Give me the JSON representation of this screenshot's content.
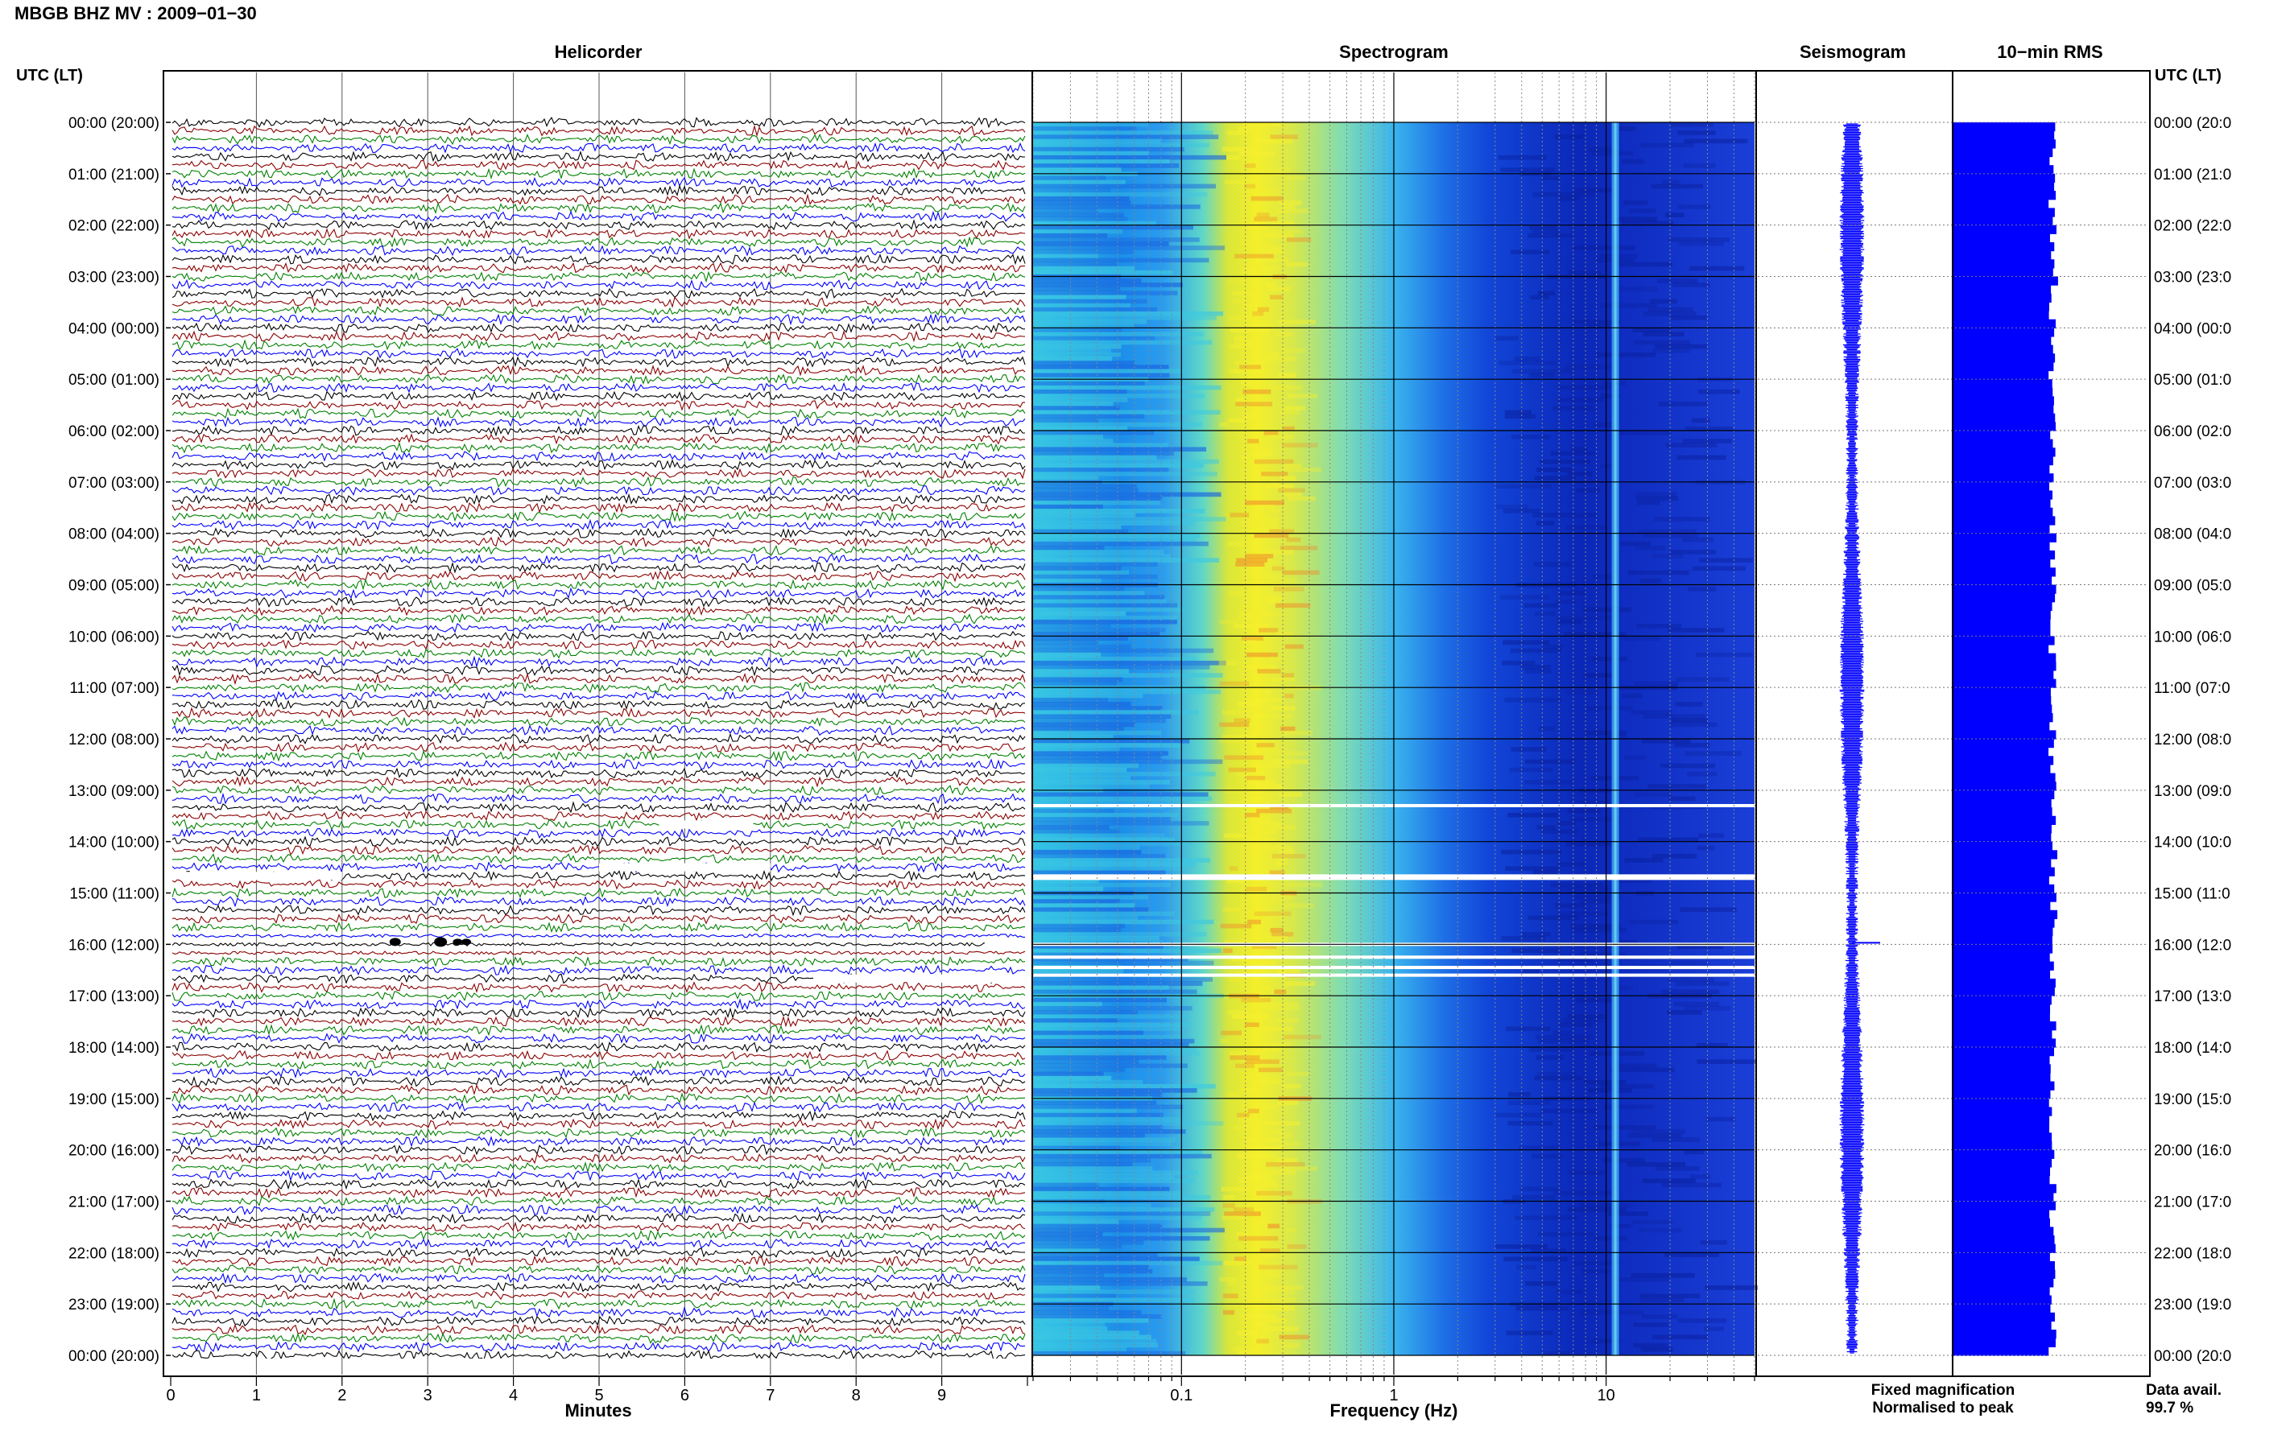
{
  "header": {
    "title": "MBGB BHZ MV : 2009−01−30",
    "utc_lt_left": "UTC (LT)",
    "utc_lt_right": "UTC (LT)"
  },
  "panels": {
    "helicorder": "Helicorder",
    "spectrogram": "Spectrogram",
    "seismogram": "Seismogram",
    "rms": "10−min RMS"
  },
  "legend": {
    "fixed": "Fixed magnification",
    "normalised": "Normalised to peak",
    "fixed_color": "#0000ff",
    "normalised_color": "#ff0000"
  },
  "data_avail": {
    "label": "Data avail.",
    "value": "99.7 %"
  },
  "chart_data": [
    {
      "type": "line",
      "name": "helicorder",
      "title": "Helicorder",
      "xlabel": "Minutes",
      "xlim": [
        0,
        10
      ],
      "x_ticks": [
        "0",
        "1",
        "2",
        "3",
        "4",
        "5",
        "6",
        "7",
        "8",
        "9"
      ],
      "rows_per_hour": 6,
      "trace_colors": [
        "#000000",
        "#8b0000",
        "#008000",
        "#0000ff"
      ],
      "time_labels_left": [
        "00:00 (20:00)",
        "01:00 (21:00)",
        "02:00 (22:00)",
        "03:00 (23:00)",
        "04:00 (00:00)",
        "05:00 (01:00)",
        "06:00 (02:00)",
        "07:00 (03:00)",
        "08:00 (04:00)",
        "09:00 (05:00)",
        "10:00 (06:00)",
        "11:00 (07:00)",
        "12:00 (08:00)",
        "13:00 (09:00)",
        "14:00 (10:00)",
        "15:00 (11:00)",
        "16:00 (12:00)",
        "17:00 (13:00)",
        "18:00 (14:00)",
        "19:00 (15:00)",
        "20:00 (16:00)",
        "21:00 (17:00)",
        "22:00 (18:00)",
        "23:00 (19:00)",
        "00:00 (20:00)"
      ]
    },
    {
      "type": "heatmap",
      "name": "spectrogram",
      "title": "Spectrogram",
      "xlabel": "Frequency (Hz)",
      "x_scale": "log",
      "xlim": [
        0.02,
        50
      ],
      "x_ticks": [
        "0.1",
        "1",
        "10"
      ],
      "peak_band_hz": [
        0.15,
        0.45
      ],
      "spectral_line_hz": 11,
      "gap_hours": [
        13.3,
        14.7,
        16.0,
        16.25,
        16.45,
        16.6
      ]
    },
    {
      "type": "line",
      "name": "seismogram",
      "title": "Seismogram"
    },
    {
      "type": "bar",
      "name": "10-min RMS",
      "title": "10−min RMS",
      "orientation": "horizontal",
      "color": "#0000ff"
    }
  ],
  "time_labels_right": [
    "00:00 (20:0",
    "01:00 (21:0",
    "02:00 (22:0",
    "03:00 (23:0",
    "04:00 (00:0",
    "05:00 (01:0",
    "06:00 (02:0",
    "07:00 (03:0",
    "08:00 (04:0",
    "09:00 (05:0",
    "10:00 (06:0",
    "11:00 (07:0",
    "12:00 (08:0",
    "13:00 (09:0",
    "14:00 (10:0",
    "15:00 (11:0",
    "16:00 (12:0",
    "17:00 (13:0",
    "18:00 (14:0",
    "19:00 (15:0",
    "20:00 (16:0",
    "21:00 (17:0",
    "22:00 (18:0",
    "23:00 (19:0",
    "00:00 (20:0"
  ]
}
